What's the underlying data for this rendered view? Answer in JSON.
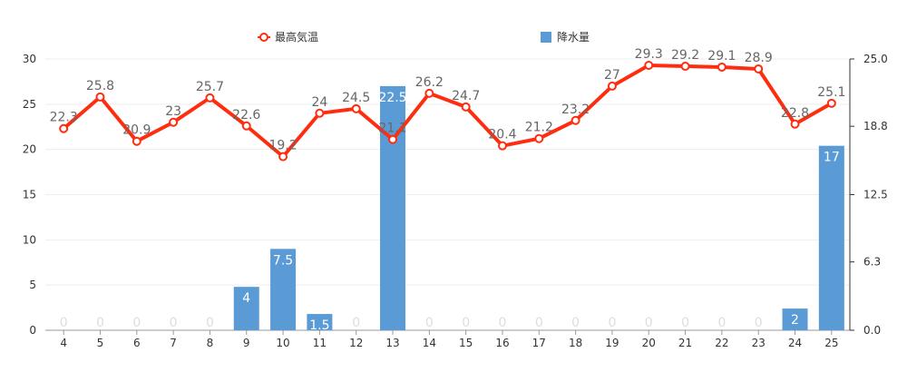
{
  "chart_data": {
    "type": "bar",
    "categories": [
      "4",
      "5",
      "6",
      "7",
      "8",
      "9",
      "10",
      "11",
      "12",
      "13",
      "14",
      "15",
      "16",
      "17",
      "18",
      "19",
      "20",
      "21",
      "22",
      "23",
      "24",
      "25"
    ],
    "series": [
      {
        "name": "最高気温",
        "type": "line",
        "axis": "left",
        "color": "#ff2d10",
        "values": [
          22.3,
          25.8,
          20.9,
          23,
          25.7,
          22.6,
          19.2,
          24,
          24.5,
          21.1,
          26.2,
          24.7,
          20.4,
          21.2,
          23.2,
          27,
          29.3,
          29.2,
          29.1,
          28.9,
          22.8,
          25.1
        ]
      },
      {
        "name": "降水量",
        "type": "bar",
        "axis": "right",
        "color": "#5b9bd5",
        "values": [
          0,
          0,
          0,
          0,
          0,
          4,
          7.5,
          1.5,
          0,
          22.5,
          0,
          0,
          0,
          0,
          0,
          0,
          0,
          0,
          0,
          0,
          2,
          17
        ]
      }
    ],
    "y_left": {
      "min": 0,
      "max": 30,
      "ticks": [
        "0",
        "5",
        "10",
        "15",
        "20",
        "25",
        "30"
      ]
    },
    "y_right": {
      "min": 0,
      "max": 25,
      "ticks": [
        "0.0",
        "6.3",
        "12.5",
        "18.8",
        "25.0"
      ]
    },
    "legend_position": "top-center",
    "grid": true
  }
}
